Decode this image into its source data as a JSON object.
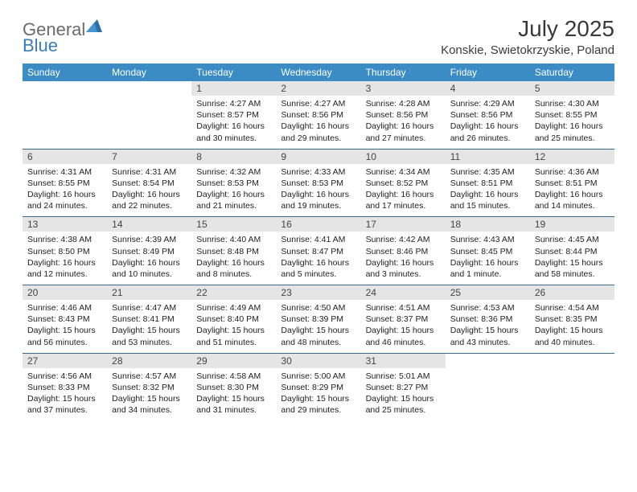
{
  "logo": {
    "text1": "General",
    "text2": "Blue"
  },
  "title": "July 2025",
  "location": "Konskie, Swietokrzyskie, Poland",
  "colors": {
    "header_bg": "#3b8bc4",
    "header_text": "#ffffff",
    "daynum_bg": "#e5e5e5",
    "cell_border": "#3b6a8f",
    "logo_gray": "#6b6b6b",
    "logo_blue": "#3b7bb8"
  },
  "day_headers": [
    "Sunday",
    "Monday",
    "Tuesday",
    "Wednesday",
    "Thursday",
    "Friday",
    "Saturday"
  ],
  "weeks": [
    [
      {
        "n": "",
        "l1": "",
        "l2": "",
        "l3": "",
        "l4": ""
      },
      {
        "n": "",
        "l1": "",
        "l2": "",
        "l3": "",
        "l4": ""
      },
      {
        "n": "1",
        "l1": "Sunrise: 4:27 AM",
        "l2": "Sunset: 8:57 PM",
        "l3": "Daylight: 16 hours",
        "l4": "and 30 minutes."
      },
      {
        "n": "2",
        "l1": "Sunrise: 4:27 AM",
        "l2": "Sunset: 8:56 PM",
        "l3": "Daylight: 16 hours",
        "l4": "and 29 minutes."
      },
      {
        "n": "3",
        "l1": "Sunrise: 4:28 AM",
        "l2": "Sunset: 8:56 PM",
        "l3": "Daylight: 16 hours",
        "l4": "and 27 minutes."
      },
      {
        "n": "4",
        "l1": "Sunrise: 4:29 AM",
        "l2": "Sunset: 8:56 PM",
        "l3": "Daylight: 16 hours",
        "l4": "and 26 minutes."
      },
      {
        "n": "5",
        "l1": "Sunrise: 4:30 AM",
        "l2": "Sunset: 8:55 PM",
        "l3": "Daylight: 16 hours",
        "l4": "and 25 minutes."
      }
    ],
    [
      {
        "n": "6",
        "l1": "Sunrise: 4:31 AM",
        "l2": "Sunset: 8:55 PM",
        "l3": "Daylight: 16 hours",
        "l4": "and 24 minutes."
      },
      {
        "n": "7",
        "l1": "Sunrise: 4:31 AM",
        "l2": "Sunset: 8:54 PM",
        "l3": "Daylight: 16 hours",
        "l4": "and 22 minutes."
      },
      {
        "n": "8",
        "l1": "Sunrise: 4:32 AM",
        "l2": "Sunset: 8:53 PM",
        "l3": "Daylight: 16 hours",
        "l4": "and 21 minutes."
      },
      {
        "n": "9",
        "l1": "Sunrise: 4:33 AM",
        "l2": "Sunset: 8:53 PM",
        "l3": "Daylight: 16 hours",
        "l4": "and 19 minutes."
      },
      {
        "n": "10",
        "l1": "Sunrise: 4:34 AM",
        "l2": "Sunset: 8:52 PM",
        "l3": "Daylight: 16 hours",
        "l4": "and 17 minutes."
      },
      {
        "n": "11",
        "l1": "Sunrise: 4:35 AM",
        "l2": "Sunset: 8:51 PM",
        "l3": "Daylight: 16 hours",
        "l4": "and 15 minutes."
      },
      {
        "n": "12",
        "l1": "Sunrise: 4:36 AM",
        "l2": "Sunset: 8:51 PM",
        "l3": "Daylight: 16 hours",
        "l4": "and 14 minutes."
      }
    ],
    [
      {
        "n": "13",
        "l1": "Sunrise: 4:38 AM",
        "l2": "Sunset: 8:50 PM",
        "l3": "Daylight: 16 hours",
        "l4": "and 12 minutes."
      },
      {
        "n": "14",
        "l1": "Sunrise: 4:39 AM",
        "l2": "Sunset: 8:49 PM",
        "l3": "Daylight: 16 hours",
        "l4": "and 10 minutes."
      },
      {
        "n": "15",
        "l1": "Sunrise: 4:40 AM",
        "l2": "Sunset: 8:48 PM",
        "l3": "Daylight: 16 hours",
        "l4": "and 8 minutes."
      },
      {
        "n": "16",
        "l1": "Sunrise: 4:41 AM",
        "l2": "Sunset: 8:47 PM",
        "l3": "Daylight: 16 hours",
        "l4": "and 5 minutes."
      },
      {
        "n": "17",
        "l1": "Sunrise: 4:42 AM",
        "l2": "Sunset: 8:46 PM",
        "l3": "Daylight: 16 hours",
        "l4": "and 3 minutes."
      },
      {
        "n": "18",
        "l1": "Sunrise: 4:43 AM",
        "l2": "Sunset: 8:45 PM",
        "l3": "Daylight: 16 hours",
        "l4": "and 1 minute."
      },
      {
        "n": "19",
        "l1": "Sunrise: 4:45 AM",
        "l2": "Sunset: 8:44 PM",
        "l3": "Daylight: 15 hours",
        "l4": "and 58 minutes."
      }
    ],
    [
      {
        "n": "20",
        "l1": "Sunrise: 4:46 AM",
        "l2": "Sunset: 8:43 PM",
        "l3": "Daylight: 15 hours",
        "l4": "and 56 minutes."
      },
      {
        "n": "21",
        "l1": "Sunrise: 4:47 AM",
        "l2": "Sunset: 8:41 PM",
        "l3": "Daylight: 15 hours",
        "l4": "and 53 minutes."
      },
      {
        "n": "22",
        "l1": "Sunrise: 4:49 AM",
        "l2": "Sunset: 8:40 PM",
        "l3": "Daylight: 15 hours",
        "l4": "and 51 minutes."
      },
      {
        "n": "23",
        "l1": "Sunrise: 4:50 AM",
        "l2": "Sunset: 8:39 PM",
        "l3": "Daylight: 15 hours",
        "l4": "and 48 minutes."
      },
      {
        "n": "24",
        "l1": "Sunrise: 4:51 AM",
        "l2": "Sunset: 8:37 PM",
        "l3": "Daylight: 15 hours",
        "l4": "and 46 minutes."
      },
      {
        "n": "25",
        "l1": "Sunrise: 4:53 AM",
        "l2": "Sunset: 8:36 PM",
        "l3": "Daylight: 15 hours",
        "l4": "and 43 minutes."
      },
      {
        "n": "26",
        "l1": "Sunrise: 4:54 AM",
        "l2": "Sunset: 8:35 PM",
        "l3": "Daylight: 15 hours",
        "l4": "and 40 minutes."
      }
    ],
    [
      {
        "n": "27",
        "l1": "Sunrise: 4:56 AM",
        "l2": "Sunset: 8:33 PM",
        "l3": "Daylight: 15 hours",
        "l4": "and 37 minutes."
      },
      {
        "n": "28",
        "l1": "Sunrise: 4:57 AM",
        "l2": "Sunset: 8:32 PM",
        "l3": "Daylight: 15 hours",
        "l4": "and 34 minutes."
      },
      {
        "n": "29",
        "l1": "Sunrise: 4:58 AM",
        "l2": "Sunset: 8:30 PM",
        "l3": "Daylight: 15 hours",
        "l4": "and 31 minutes."
      },
      {
        "n": "30",
        "l1": "Sunrise: 5:00 AM",
        "l2": "Sunset: 8:29 PM",
        "l3": "Daylight: 15 hours",
        "l4": "and 29 minutes."
      },
      {
        "n": "31",
        "l1": "Sunrise: 5:01 AM",
        "l2": "Sunset: 8:27 PM",
        "l3": "Daylight: 15 hours",
        "l4": "and 25 minutes."
      },
      {
        "n": "",
        "l1": "",
        "l2": "",
        "l3": "",
        "l4": ""
      },
      {
        "n": "",
        "l1": "",
        "l2": "",
        "l3": "",
        "l4": ""
      }
    ]
  ]
}
